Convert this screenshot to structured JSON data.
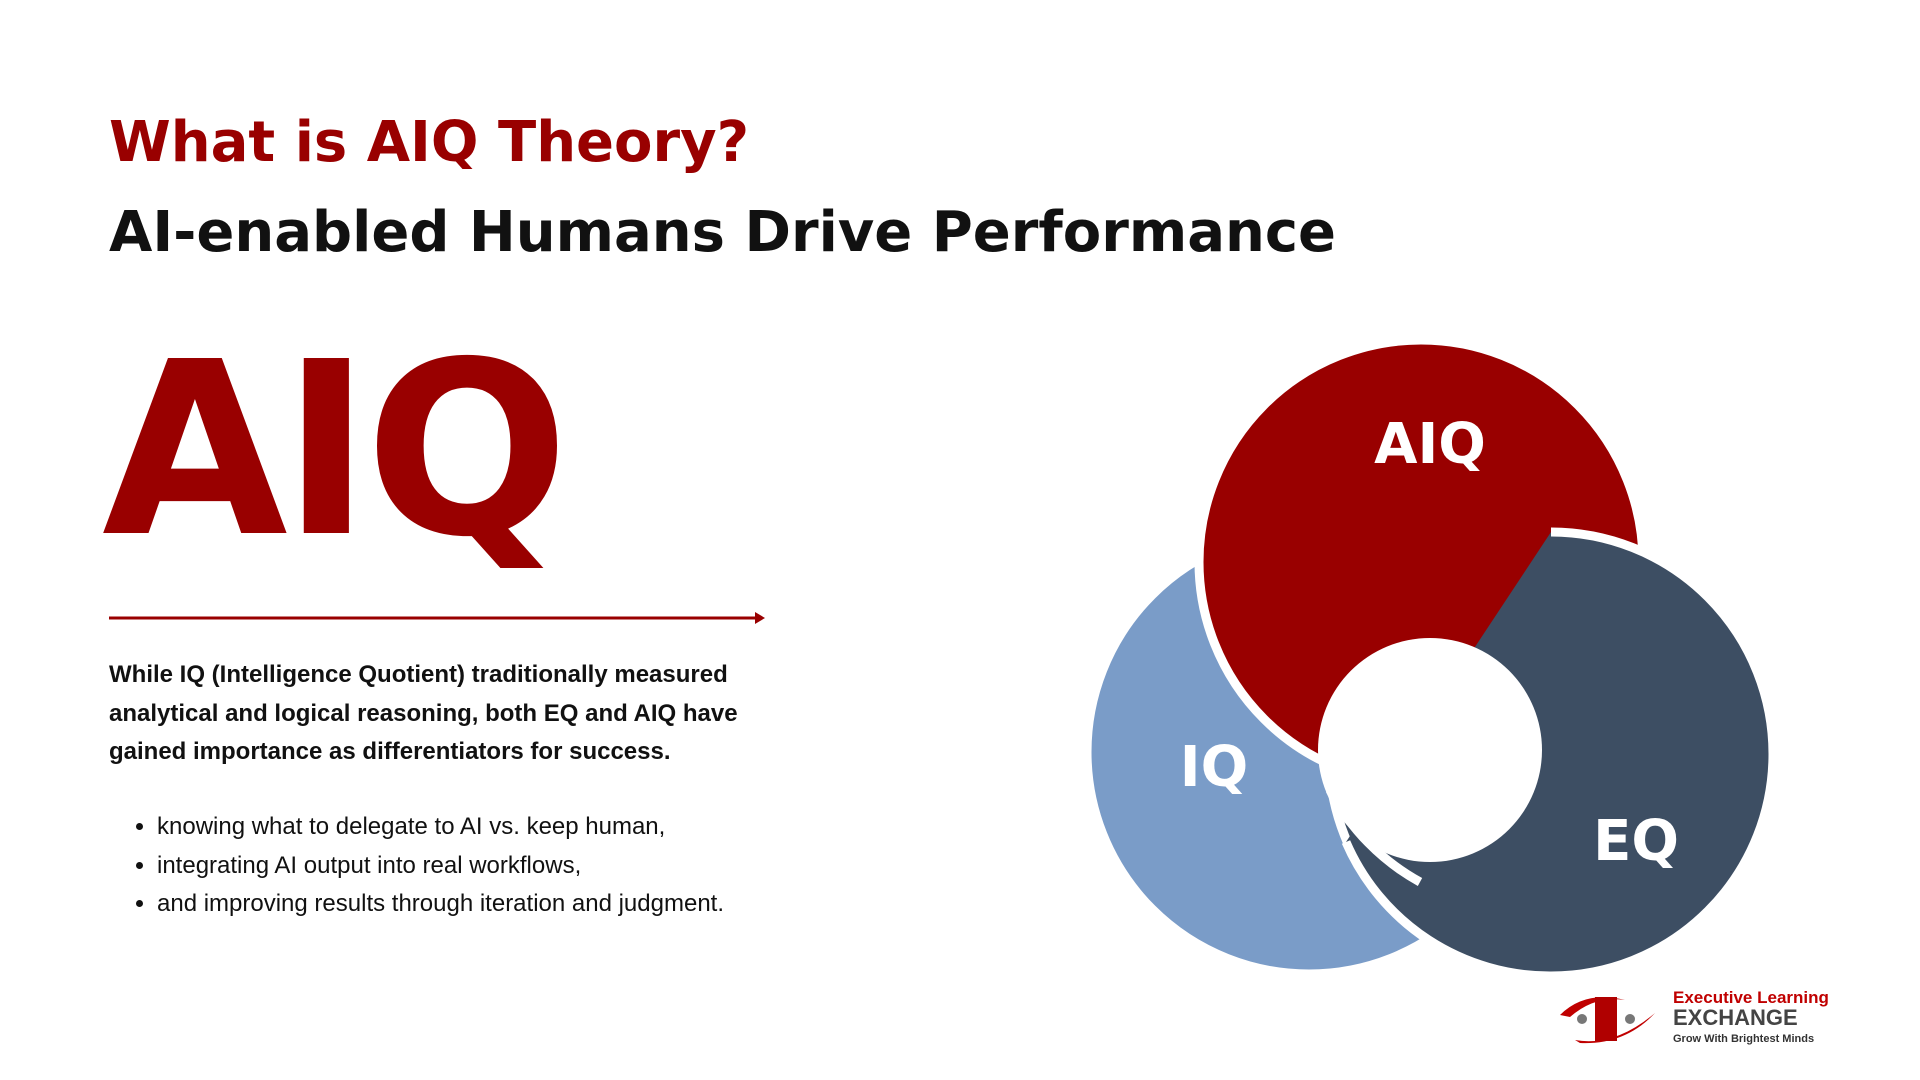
{
  "header": {
    "title": "What is AIQ Theory?",
    "subtitle": "AI-enabled Humans Drive Performance"
  },
  "hero": {
    "label": "AIQ"
  },
  "body": {
    "paragraph": "While IQ (Intelligence Quotient) traditionally measured analytical and logical reasoning, both EQ and AIQ have gained importance as differentiators for success.",
    "bullets": [
      "knowing what to delegate to AI vs. keep human,",
      "integrating AI output into real workflows,",
      "and improving results through iteration and judgment."
    ]
  },
  "diagram": {
    "nodes": [
      {
        "label": "AIQ"
      },
      {
        "label": "IQ"
      },
      {
        "label": "EQ"
      }
    ]
  },
  "logo": {
    "line1": "Executive Learning",
    "line2": "EXCHANGE",
    "tagline": "Grow With Brightest Minds"
  }
}
